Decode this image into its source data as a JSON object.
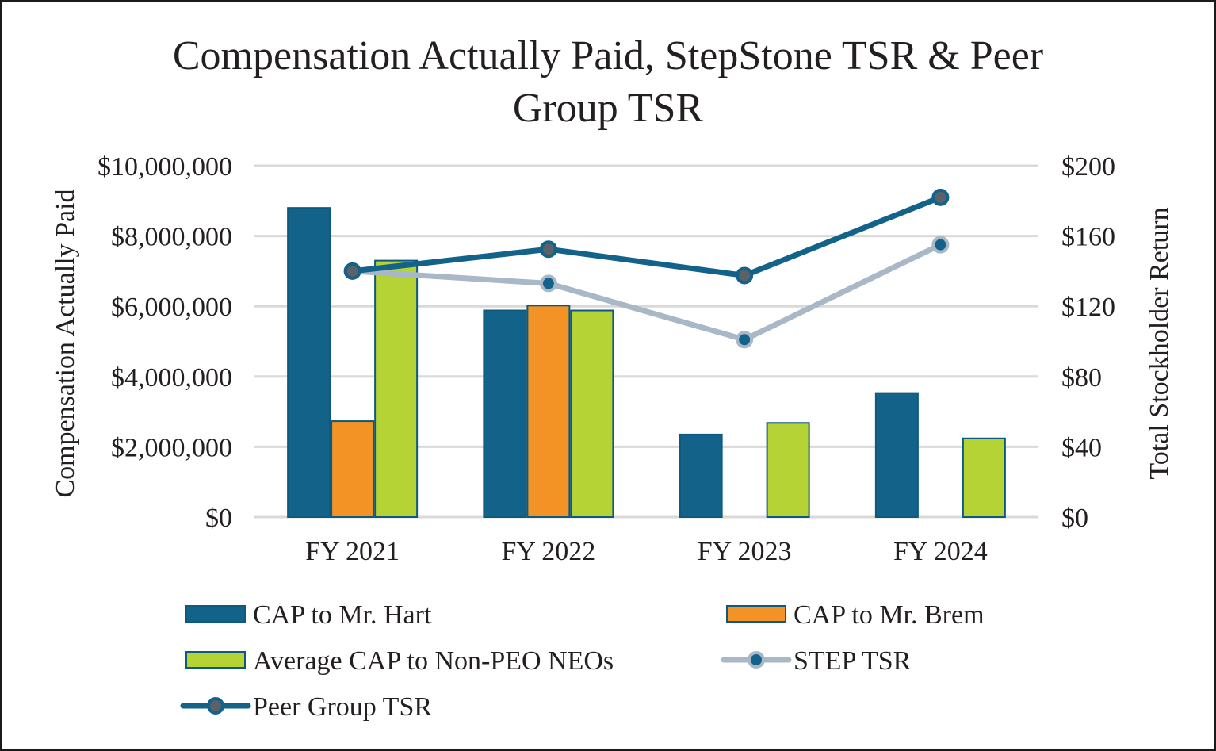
{
  "chart_data": {
    "type": "bar",
    "title_lines": [
      "Compensation Actually Paid, StepStone TSR & Peer",
      "Group TSR"
    ],
    "categories": [
      "FY 2021",
      "FY 2022",
      "FY 2023",
      "FY 2024"
    ],
    "ylabel": "Compensation Actually Paid",
    "y2label": "Total Stockholder Return",
    "ylim": [
      0,
      10000000
    ],
    "y2lim": [
      0,
      200
    ],
    "y_ticks": [
      "$0",
      "$2,000,000",
      "$4,000,000",
      "$6,000,000",
      "$8,000,000",
      "$10,000,000"
    ],
    "y2_ticks": [
      "$0",
      "$40",
      "$80",
      "$120",
      "$160",
      "$200"
    ],
    "grid": true,
    "legend_position": "bottom",
    "series": [
      {
        "name": "CAP to Mr. Hart",
        "kind": "bar",
        "color": "#12628a",
        "values": [
          8800000,
          5880000,
          2350000,
          3530000
        ]
      },
      {
        "name": "CAP to Mr. Brem",
        "kind": "bar",
        "color": "#f39325",
        "values": [
          2730000,
          6020000,
          null,
          null
        ]
      },
      {
        "name": "Average CAP to Non-PEO NEOs",
        "kind": "bar",
        "color": "#b5d334",
        "values": [
          7300000,
          5880000,
          2680000,
          2240000
        ]
      },
      {
        "name": "STEP TSR",
        "kind": "line",
        "axis": "right",
        "color": "#a8b8c6",
        "marker_color": "#12628a",
        "values": [
          140,
          133,
          101,
          155
        ]
      },
      {
        "name": "Peer Group TSR",
        "kind": "line",
        "axis": "right",
        "color": "#12628a",
        "marker_color": "#5a6167",
        "values": [
          140,
          152.5,
          137.5,
          182
        ]
      }
    ]
  }
}
